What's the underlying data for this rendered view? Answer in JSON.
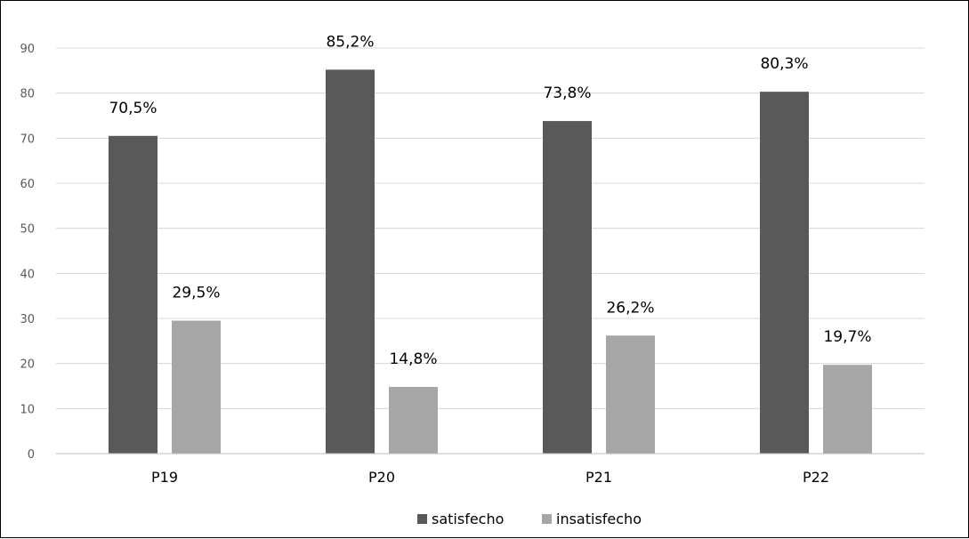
{
  "chart_data": {
    "type": "bar",
    "title": "",
    "xlabel": "",
    "ylabel": "",
    "categories": [
      "P19",
      "P20",
      "P21",
      "P22"
    ],
    "series": [
      {
        "name": "satisfecho",
        "values": [
          70.5,
          85.2,
          73.8,
          80.3
        ],
        "labels": [
          "70,5%",
          "85,2%",
          "73,8%",
          "80,3%"
        ],
        "color": "#595959"
      },
      {
        "name": "insatisfecho",
        "values": [
          29.5,
          14.8,
          26.2,
          19.7
        ],
        "labels": [
          "29,5%",
          "14,8%",
          "26,2%",
          "19,7%"
        ],
        "color": "#a6a6a6"
      }
    ],
    "ylim": [
      0,
      90
    ],
    "yticks": [
      0,
      10,
      20,
      30,
      40,
      50,
      60,
      70,
      80,
      90
    ],
    "grid": true,
    "gridColor": "#d9d9d9",
    "legend": "bottom-center"
  }
}
